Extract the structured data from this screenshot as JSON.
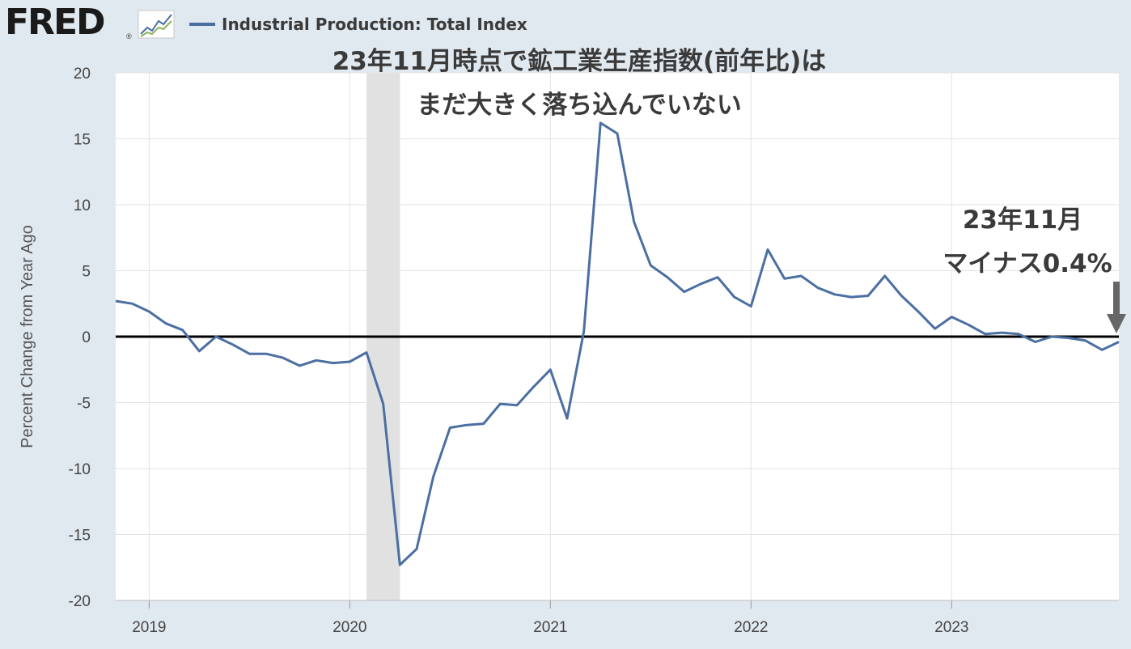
{
  "header": {
    "logo": "FRED",
    "logo_mark": "®",
    "logo_icon": "line-chart-icon",
    "legend_label": "Industrial Production: Total Index"
  },
  "annotations": {
    "headline_1": "23年11月時点で鉱工業生産指数(前年比)は",
    "headline_2": "まだ大きく落ち込んでいない",
    "callout_1": "23年11月",
    "callout_2": "マイナス0.4%"
  },
  "colors": {
    "series": "#4b6fa1",
    "recession": "#e1e1e1",
    "background": "#e1e9f0",
    "plot": "#ffffff"
  },
  "chart_data": {
    "type": "line",
    "title": "",
    "xlabel": "",
    "ylabel": "Percent Change from Year Ago",
    "ylim": [
      -20,
      20
    ],
    "yticks": [
      "20",
      "15",
      "10",
      "5",
      "0",
      "-5",
      "-10",
      "-15",
      "-20"
    ],
    "xticks": [
      "2019",
      "2020",
      "2021",
      "2022",
      "2023"
    ],
    "grid": true,
    "reference_line": 0,
    "recession_shading": {
      "start": "2020-02",
      "end": "2020-04"
    },
    "series": [
      {
        "name": "Industrial Production: Total Index",
        "x": [
          "2018-11",
          "2018-12",
          "2019-01",
          "2019-02",
          "2019-03",
          "2019-04",
          "2019-05",
          "2019-06",
          "2019-07",
          "2019-08",
          "2019-09",
          "2019-10",
          "2019-11",
          "2019-12",
          "2020-01",
          "2020-02",
          "2020-03",
          "2020-04",
          "2020-05",
          "2020-06",
          "2020-07",
          "2020-08",
          "2020-09",
          "2020-10",
          "2020-11",
          "2020-12",
          "2021-01",
          "2021-02",
          "2021-03",
          "2021-04",
          "2021-05",
          "2021-06",
          "2021-07",
          "2021-08",
          "2021-09",
          "2021-10",
          "2021-11",
          "2021-12",
          "2022-01",
          "2022-02",
          "2022-03",
          "2022-04",
          "2022-05",
          "2022-06",
          "2022-07",
          "2022-08",
          "2022-09",
          "2022-10",
          "2022-11",
          "2022-12",
          "2023-01",
          "2023-02",
          "2023-03",
          "2023-04",
          "2023-05",
          "2023-06",
          "2023-07",
          "2023-08",
          "2023-09",
          "2023-10",
          "2023-11"
        ],
        "values": [
          2.7,
          2.5,
          1.9,
          1.0,
          0.5,
          -1.1,
          0.0,
          -0.6,
          -1.3,
          -1.3,
          -1.6,
          -2.2,
          -1.8,
          -2.0,
          -1.9,
          -1.2,
          -5.1,
          -17.3,
          -16.1,
          -10.6,
          -6.9,
          -6.7,
          -6.6,
          -5.1,
          -5.2,
          -3.8,
          -2.5,
          -6.2,
          0.4,
          16.2,
          15.4,
          8.7,
          5.4,
          4.5,
          3.4,
          4.0,
          4.5,
          3.0,
          2.3,
          6.6,
          4.4,
          4.6,
          3.7,
          3.2,
          3.0,
          3.1,
          4.6,
          3.1,
          1.9,
          0.6,
          1.5,
          0.9,
          0.2,
          0.3,
          0.2,
          -0.4,
          0.0,
          -0.1,
          -0.3,
          -1.0,
          -0.4
        ]
      }
    ]
  }
}
